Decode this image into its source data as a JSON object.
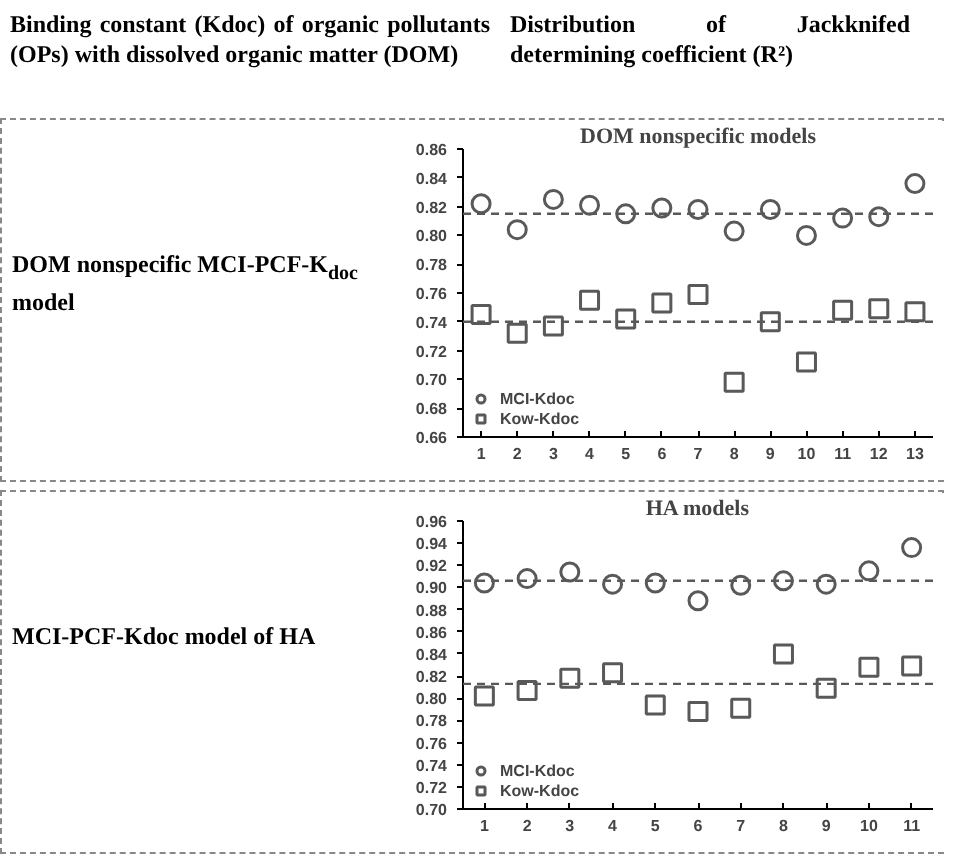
{
  "chart_data": [
    {
      "type": "scatter",
      "title": "DOM nonspecific models",
      "annotations": [
        "Binding constant (Kdoc) of organic pollutants (OPs) with dissolved organic matter (DOM)",
        "Distribution of Jackknifed determining coefficient (R²)",
        "DOM nonspecific MCI-PCF-K$_{doc}$ model"
      ],
      "x": [
        1,
        2,
        3,
        4,
        5,
        6,
        7,
        8,
        9,
        10,
        11,
        12,
        13
      ],
      "series": [
        {
          "name": "MCI-Kdoc",
          "color": "#595959",
          "marker": "circle",
          "values": [
            0.822,
            0.804,
            0.825,
            0.821,
            0.815,
            0.819,
            0.818,
            0.803,
            0.818,
            0.8,
            0.812,
            0.813,
            0.836
          ]
        },
        {
          "name": "Kow-Kdoc",
          "color": "#595959",
          "marker": "square",
          "values": [
            0.745,
            0.732,
            0.737,
            0.755,
            0.742,
            0.753,
            0.759,
            0.698,
            0.74,
            0.712,
            0.748,
            0.749,
            0.747
          ]
        }
      ],
      "xlim": [
        0.5,
        13.5
      ],
      "xticks": [
        1,
        2,
        3,
        4,
        5,
        6,
        7,
        8,
        9,
        10,
        11,
        12,
        13
      ],
      "ylim": [
        0.66,
        0.86
      ],
      "yticks": [
        {
          "value": 0.66,
          "label": "0.66"
        },
        {
          "value": 0.68,
          "label": "0.68"
        },
        {
          "value": 0.7,
          "label": "0.70"
        },
        {
          "value": 0.72,
          "label": "0.72"
        },
        {
          "value": 0.74,
          "label": "0.74"
        },
        {
          "value": 0.76,
          "label": "0.76"
        },
        {
          "value": 0.78,
          "label": "0.78"
        },
        {
          "value": 0.8,
          "label": "0.80"
        },
        {
          "value": 0.82,
          "label": "0.82"
        },
        {
          "value": 0.84,
          "label": "0.84"
        },
        {
          "value": 0.86,
          "label": "0.86"
        }
      ],
      "ref_lines": [
        {
          "axis": "y",
          "value": 0.815,
          "color": "#595959",
          "line_style": "dashed"
        },
        {
          "axis": "y",
          "value": 0.74,
          "color": "#595959",
          "line_style": "dashed"
        }
      ],
      "legend": "bottom left",
      "grid": false
    },
    {
      "type": "scatter",
      "title": "HA models",
      "annotations": [
        "MCI-PCF-Kdoc model of HA"
      ],
      "x": [
        1,
        2,
        3,
        4,
        5,
        6,
        7,
        8,
        9,
        10,
        11
      ],
      "series": [
        {
          "name": "MCI-Kdoc",
          "color": "#595959",
          "marker": "circle",
          "values": [
            0.904,
            0.908,
            0.914,
            0.903,
            0.904,
            0.888,
            0.902,
            0.906,
            0.903,
            0.915,
            0.936
          ]
        },
        {
          "name": "Kow-Kdoc",
          "color": "#595959",
          "marker": "square",
          "values": [
            0.802,
            0.807,
            0.818,
            0.823,
            0.794,
            0.788,
            0.791,
            0.84,
            0.809,
            0.828,
            0.829
          ]
        }
      ],
      "xlim": [
        0.5,
        11.5
      ],
      "xticks": [
        1,
        2,
        3,
        4,
        5,
        6,
        7,
        8,
        9,
        10,
        11
      ],
      "ylim": [
        0.7,
        0.96
      ],
      "yticks": [
        {
          "value": 0.7,
          "label": "0.70"
        },
        {
          "value": 0.72,
          "label": "0.72"
        },
        {
          "value": 0.74,
          "label": "0.74"
        },
        {
          "value": 0.76,
          "label": "0.76"
        },
        {
          "value": 0.78,
          "label": "0.78"
        },
        {
          "value": 0.8,
          "label": "0.80"
        },
        {
          "value": 0.82,
          "label": "0.82"
        },
        {
          "value": 0.84,
          "label": "0.84"
        },
        {
          "value": 0.86,
          "label": "0.86"
        },
        {
          "value": 0.88,
          "label": "0.88"
        },
        {
          "value": 0.9,
          "label": "0.90"
        },
        {
          "value": 0.92,
          "label": "0.92"
        },
        {
          "value": 0.94,
          "label": "0.94"
        },
        {
          "value": 0.96,
          "label": "0.96"
        }
      ],
      "ref_lines": [
        {
          "axis": "y",
          "value": 0.906,
          "color": "#595959",
          "line_style": "dashed"
        },
        {
          "axis": "y",
          "value": 0.813,
          "color": "#595959",
          "line_style": "dashed"
        }
      ],
      "legend": "bottom left",
      "grid": false
    }
  ]
}
